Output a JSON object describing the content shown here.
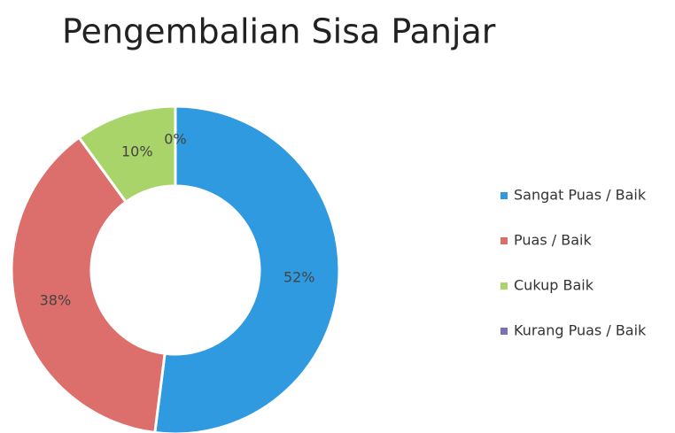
{
  "chart_data": {
    "type": "pie",
    "title": "Pengembalian Sisa Panjar",
    "categories": [
      "Sangat Puas / Baik",
      "Puas / Baik",
      "Cukup Baik",
      "Kurang Puas / Baik"
    ],
    "values": [
      52,
      38,
      10,
      0
    ],
    "value_labels": [
      "52%",
      "38%",
      "10%",
      "0%"
    ],
    "colors": [
      "#2f9ae0",
      "#dc6e6b",
      "#a9d46a",
      "#7d6fb3"
    ],
    "donut": true,
    "legend": "right"
  }
}
